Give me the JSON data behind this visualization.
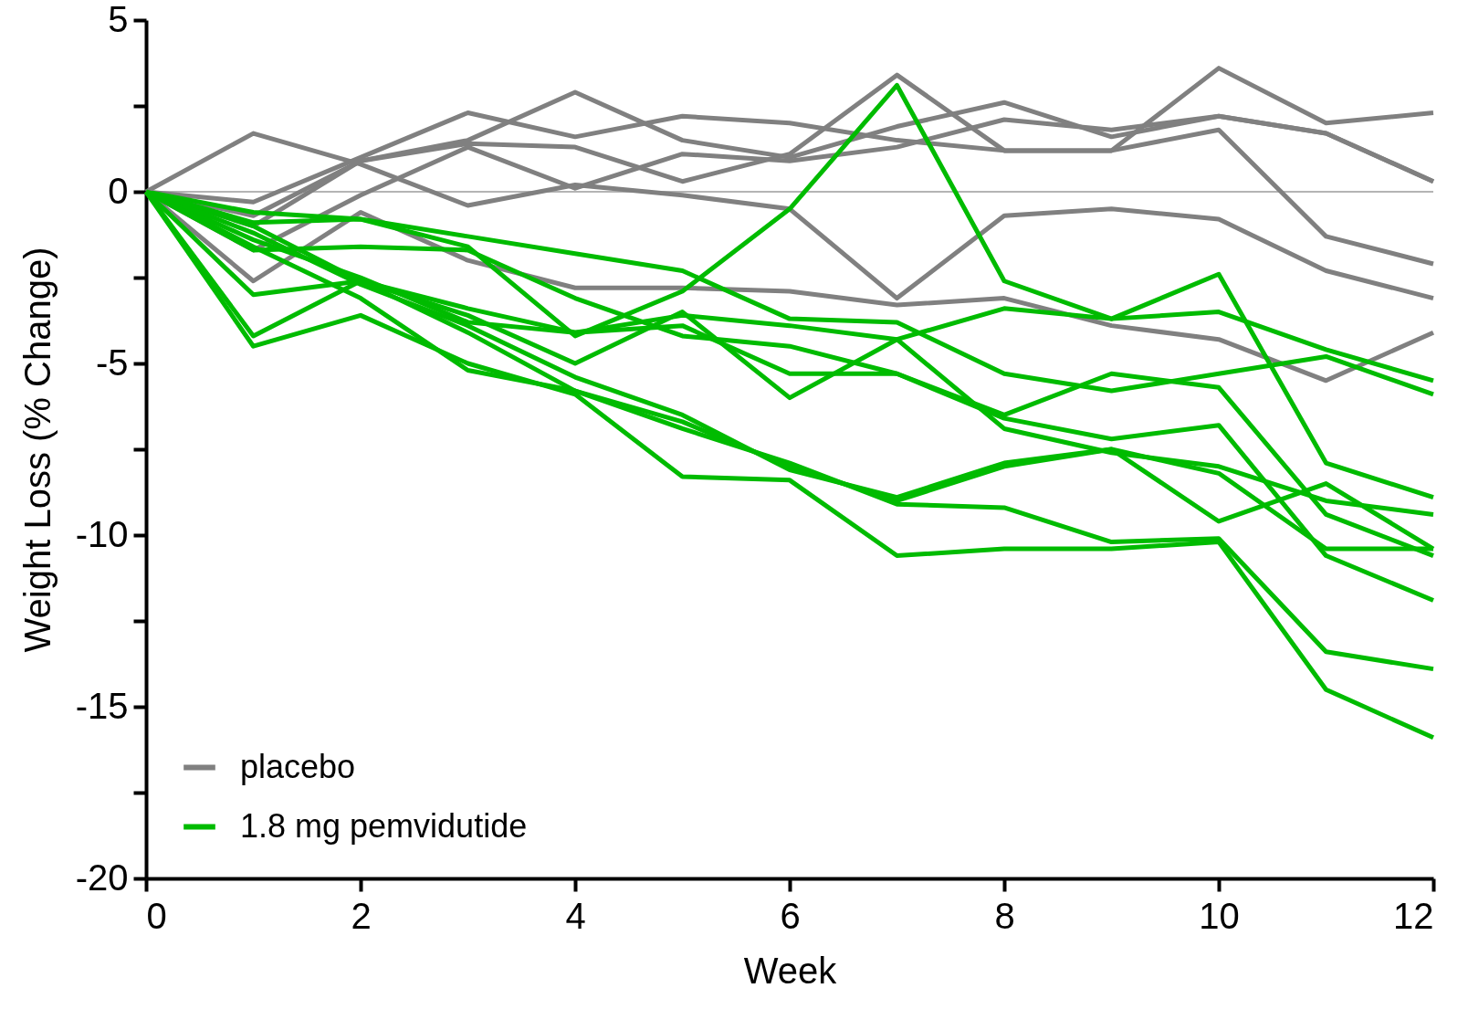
{
  "chart_data": {
    "type": "line",
    "xlabel": "Week",
    "ylabel": "Weight Loss (% Change)",
    "x": [
      0,
      1,
      2,
      3,
      4,
      5,
      6,
      7,
      8,
      9,
      10,
      11,
      12
    ],
    "xlim": [
      0,
      12
    ],
    "xticks": [
      0,
      2,
      4,
      6,
      8,
      10,
      12
    ],
    "ylim": [
      -20,
      5
    ],
    "yticks": [
      {
        "value": -20,
        "label": "-20"
      },
      {
        "value": -17.5,
        "label": null
      },
      {
        "value": -15,
        "label": "-15"
      },
      {
        "value": -12.5,
        "label": null
      },
      {
        "value": -10,
        "label": "-10"
      },
      {
        "value": -7.5,
        "label": null
      },
      {
        "value": -5,
        "label": "-5"
      },
      {
        "value": -2.5,
        "label": null
      },
      {
        "value": 0,
        "label": "0"
      },
      {
        "value": 2.5,
        "label": null
      },
      {
        "value": 5,
        "label": "5"
      }
    ],
    "grid": false,
    "legend": "bottom left",
    "line_style": "solid",
    "marker": "none",
    "ref_lines": [
      {
        "axis": "y",
        "value": 0,
        "color": "#b4b4b4"
      }
    ],
    "series": [
      {
        "name": "placebo",
        "color": "#808080",
        "values": [
          0,
          1.7,
          0.8,
          -0.4,
          0.2,
          -0.1,
          -0.5,
          -3.1,
          -0.7,
          -0.5,
          -0.8,
          -2.3,
          -3.1
        ]
      },
      {
        "color": "#808080",
        "values": [
          0,
          -2.6,
          -0.6,
          -2.0,
          -2.8,
          -2.8,
          -2.9,
          -3.3,
          -3.1,
          -3.9,
          -4.3,
          -5.5,
          -4.1
        ]
      },
      {
        "color": "#808080",
        "values": [
          0,
          -0.3,
          1.0,
          2.3,
          1.6,
          2.2,
          2.0,
          1.5,
          1.2,
          1.2,
          3.6,
          2.0,
          2.3
        ]
      },
      {
        "color": "#808080",
        "values": [
          0,
          -1.0,
          0.9,
          1.5,
          2.9,
          1.5,
          1.0,
          1.9,
          2.6,
          1.6,
          2.2,
          1.7,
          0.3
        ]
      },
      {
        "color": "#808080",
        "values": [
          0,
          -0.7,
          0.9,
          1.4,
          1.3,
          0.3,
          1.1,
          3.4,
          1.2,
          1.2,
          1.8,
          -1.3,
          -2.1
        ]
      },
      {
        "color": "#808080",
        "values": [
          0,
          -1.7,
          -0.1,
          1.3,
          0.1,
          1.1,
          0.9,
          1.3,
          2.1,
          1.8,
          2.2,
          1.7,
          0.3
        ]
      },
      {
        "name": "1.8 mg pemvidutide",
        "color": "#00bb00",
        "values": [
          0,
          -0.9,
          -0.8,
          -1.6,
          -4.2,
          -2.9,
          -0.5,
          3.1,
          -2.6,
          -3.7,
          -2.4,
          -7.9,
          -8.9
        ]
      },
      {
        "color": "#00bb00",
        "values": [
          0,
          -4.2,
          -2.6,
          -3.6,
          -5.0,
          -3.5,
          -6.0,
          -4.3,
          -3.4,
          -3.7,
          -3.5,
          -4.6,
          -5.5
        ]
      },
      {
        "color": "#00bb00",
        "values": [
          0,
          -0.6,
          -0.8,
          -1.3,
          -1.8,
          -2.3,
          -3.7,
          -3.8,
          -5.3,
          -5.8,
          -5.3,
          -4.8,
          -5.9
        ]
      },
      {
        "color": "#00bb00",
        "values": [
          0,
          -1.7,
          -1.6,
          -1.7,
          -3.1,
          -4.2,
          -4.5,
          -5.3,
          -6.5,
          -5.3,
          -5.7,
          -9.4,
          -10.6
        ]
      },
      {
        "color": "#00bb00",
        "values": [
          0,
          -1.0,
          -2.6,
          -3.4,
          -4.1,
          -3.9,
          -5.3,
          -5.3,
          -6.6,
          -7.2,
          -6.8,
          -10.6,
          -11.9
        ]
      },
      {
        "color": "#00bb00",
        "values": [
          0,
          -1.4,
          -2.5,
          -3.8,
          -4.1,
          -3.6,
          -3.9,
          -4.3,
          -6.9,
          -7.6,
          -8.0,
          -9.0,
          -9.4
        ]
      },
      {
        "color": "#00bb00",
        "values": [
          0,
          -1.2,
          -2.7,
          -3.9,
          -5.4,
          -6.5,
          -8.1,
          -8.9,
          -7.9,
          -7.5,
          -9.6,
          -8.5,
          -10.4
        ]
      },
      {
        "color": "#00bb00",
        "values": [
          0,
          -3.0,
          -2.6,
          -4.1,
          -5.8,
          -6.9,
          -7.9,
          -9.1,
          -9.2,
          -10.2,
          -10.1,
          -13.4,
          -13.9
        ]
      },
      {
        "color": "#00bb00",
        "values": [
          0,
          -4.5,
          -3.6,
          -5.0,
          -5.9,
          -8.3,
          -8.4,
          -10.6,
          -10.4,
          -10.4,
          -10.2,
          -14.5,
          -15.9
        ]
      },
      {
        "color": "#00bb00",
        "values": [
          0,
          -1.6,
          -3.1,
          -5.2,
          -5.8,
          -6.7,
          -8.0,
          -9.0,
          -8.0,
          -7.5,
          -8.2,
          -10.4,
          -10.4
        ]
      }
    ]
  }
}
